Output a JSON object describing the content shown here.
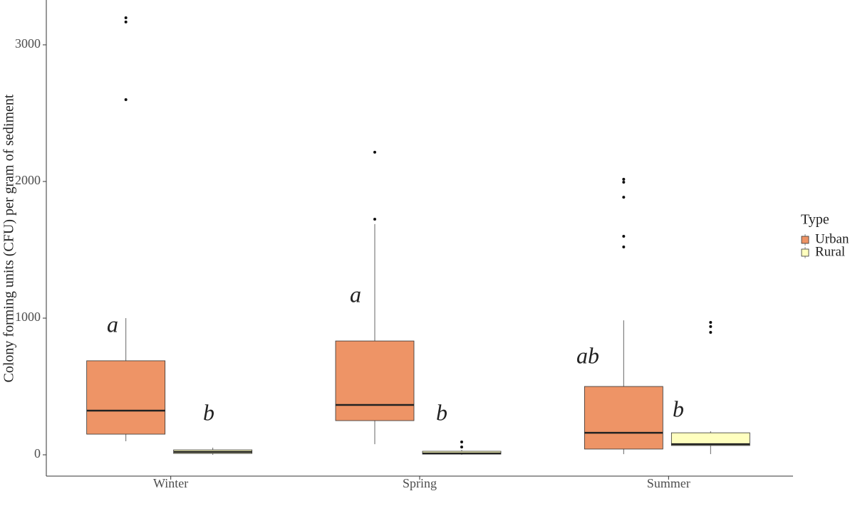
{
  "chart_data": {
    "type": "box",
    "y_label": "Colony forming units (CFU) per gram of sediment",
    "legend_title": "Type",
    "categories": [
      "Winter",
      "Spring",
      "Summer"
    ],
    "series": [
      {
        "name": "Urban",
        "color": "#ee9466",
        "boxes": [
          {
            "low": 99,
            "q1": 151,
            "median": 323,
            "q3": 688,
            "high": 1000,
            "outliers": [
              2599,
              3167,
              3198
            ]
          },
          {
            "low": 78,
            "q1": 250,
            "median": 365,
            "q3": 833,
            "high": 1688,
            "outliers": [
              1724,
              2214
            ]
          },
          {
            "low": 5,
            "q1": 42,
            "median": 161,
            "q3": 500,
            "high": 984,
            "outliers": [
              1521,
              1599,
              1885,
              1995,
              2016
            ]
          }
        ]
      },
      {
        "name": "Rural",
        "color": "#ffffbf",
        "boxes": [
          {
            "low": 0,
            "q1": 10,
            "median": 21,
            "q3": 36,
            "high": 52,
            "outliers": []
          },
          {
            "low": 0,
            "q1": 5,
            "median": 10,
            "q3": 26,
            "high": 36,
            "outliers": [
              57,
              94
            ]
          },
          {
            "low": 5,
            "q1": 68,
            "median": 78,
            "q3": 161,
            "high": 172,
            "outliers": [
              896,
              938,
              969
            ]
          }
        ]
      }
    ],
    "annotations": [
      "a",
      "b",
      "a",
      "b",
      "ab",
      "b"
    ],
    "ylim": [
      -156,
      3328
    ],
    "yticks": [
      0,
      1000,
      2000,
      3000
    ],
    "legend": "right"
  }
}
